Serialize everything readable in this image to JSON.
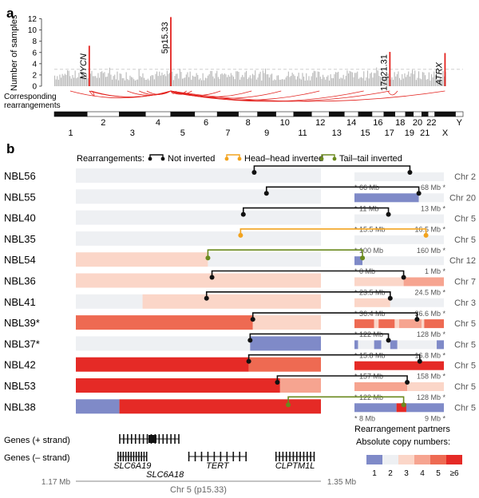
{
  "panel_labels": {
    "a": "a",
    "b": "b"
  },
  "chart_data": [
    {
      "type": "bar",
      "panel": "a",
      "ylabel": "Number of samples",
      "yticks": [
        0,
        2,
        4,
        6,
        8,
        10,
        12
      ],
      "ylim": [
        0,
        12.5
      ],
      "rearrangement_label": [
        "Corresponding",
        "rearrangements"
      ],
      "chromosomes": [
        "1",
        "2",
        "3",
        "4",
        "5",
        "6",
        "7",
        "8",
        "9",
        "10",
        "11",
        "12",
        "13",
        "14",
        "15",
        "16",
        "17",
        "18",
        "19",
        "20",
        "21",
        "22",
        "X",
        "Y"
      ],
      "chrom_sizes_mb": [
        248,
        242,
        198,
        190,
        181,
        171,
        159,
        145,
        138,
        134,
        135,
        133,
        114,
        107,
        102,
        90,
        83,
        80,
        59,
        64,
        47,
        51,
        156,
        57
      ],
      "peaks": [
        {
          "label": "MYCN",
          "chrom": "2",
          "pos_mb": 16,
          "value": 7.2
        },
        {
          "label": "5p15.33",
          "chrom": "5",
          "pos_mb": 1.3,
          "value": 12.3
        },
        {
          "label": "17q21.31",
          "chrom": "17",
          "pos_mb": 45,
          "value": 6.1
        },
        {
          "label": "ATRX",
          "chrom": "X",
          "pos_mb": 77,
          "value": 5.9
        }
      ],
      "background_level": 2,
      "threshold_line": 3
    },
    {
      "type": "heatmap",
      "panel": "b",
      "legend_title": "Rearrangements:",
      "legend": [
        {
          "name": "Not inverted",
          "color": "#111111"
        },
        {
          "name": "Head–head inverted",
          "color": "#f2a31e"
        },
        {
          "name": "Tail–tail inverted",
          "color": "#6b8a1e"
        }
      ],
      "region_xlim_mb": [
        1.17,
        1.35
      ],
      "region_axis_labels": [
        "1.17 Mb",
        "1.35 Mb"
      ],
      "region_label": "Chr 5 (p15.33)",
      "partners_label": "Rearrangement partners",
      "copy_number_legend_title": "Absolute copy numbers:",
      "copy_number_scale": [
        {
          "label": "1",
          "color": "#7f8ac8"
        },
        {
          "label": "2",
          "color": "#eef0f3"
        },
        {
          "label": "3",
          "color": "#fbd6c8"
        },
        {
          "label": "4",
          "color": "#f6a490"
        },
        {
          "label": "5",
          "color": "#ee6a52"
        },
        {
          "label": "≥6",
          "color": "#e52a26"
        }
      ],
      "genes_plus_label": "Genes (+ strand)",
      "genes_minus_label": "Genes (– strand)",
      "genes": [
        {
          "name": "SLC6A19",
          "strand": "-",
          "start_mb": 1.201,
          "end_mb": 1.222
        },
        {
          "name": "SLC6A18",
          "strand": "-",
          "start_mb": 1.225,
          "end_mb": 1.246
        },
        {
          "name": "TERT",
          "strand": "-",
          "start_mb": 1.253,
          "end_mb": 1.295
        },
        {
          "name": "CLPTM1L",
          "strand": "-",
          "start_mb": 1.317,
          "end_mb": 1.345
        }
      ],
      "samples": [
        {
          "name": "NBL56",
          "segments": [
            [
              1.17,
              1.35,
              2
            ]
          ],
          "bp_mb": 1.301,
          "type": "not_inverted",
          "partner": {
            "chrom": "Chr 2",
            "start": "66 Mb",
            "end": "68 Mb",
            "bp_frac": 0.62,
            "segments": [
              [
                0,
                1,
                2
              ]
            ]
          }
        },
        {
          "name": "NBL55",
          "segments": [
            [
              1.17,
              1.35,
              2
            ]
          ],
          "bp_mb": 1.31,
          "type": "not_inverted",
          "partner": {
            "chrom": "Chr 20",
            "start": "11 Mb",
            "end": "13 Mb",
            "bp_frac": 0.72,
            "segments": [
              [
                0,
                0.72,
                1
              ],
              [
                0.72,
                1,
                2
              ]
            ]
          }
        },
        {
          "name": "NBL40",
          "segments": [
            [
              1.17,
              1.35,
              2
            ]
          ],
          "bp_mb": 1.293,
          "type": "not_inverted",
          "partner": {
            "chrom": "Chr 5",
            "start": "15.5 Mb",
            "end": "16.5 Mb",
            "bp_frac": 0.38,
            "segments": [
              [
                0,
                1,
                2
              ]
            ]
          }
        },
        {
          "name": "NBL35",
          "segments": [
            [
              1.17,
              1.35,
              2
            ]
          ],
          "bp_mb": 1.291,
          "type": "head_head_inverted",
          "partner": {
            "chrom": "Chr 5",
            "start": "100 Mb",
            "end": "160 Mb",
            "bp_frac": 0.8,
            "segments": [
              [
                0,
                1,
                2
              ]
            ]
          }
        },
        {
          "name": "NBL54",
          "segments": [
            [
              1.17,
              1.267,
              3
            ],
            [
              1.267,
              1.35,
              2
            ]
          ],
          "bp_mb": 1.267,
          "type": "tail_tail_inverted",
          "partner": {
            "chrom": "Chr 12",
            "start": "0 Mb",
            "end": "1 Mb",
            "bp_frac": 0.09,
            "segments": [
              [
                0,
                0.09,
                1
              ],
              [
                0.09,
                1,
                2
              ]
            ]
          }
        },
        {
          "name": "NBL36",
          "segments": [
            [
              1.17,
              1.35,
              3
            ]
          ],
          "bp_mb": 1.27,
          "type": "not_inverted",
          "partner": {
            "chrom": "Chr 7",
            "start": "23.5 Mb",
            "end": "24.5 Mb",
            "bp_frac": 0.55,
            "segments": [
              [
                0,
                0.55,
                3
              ],
              [
                0.55,
                1,
                4
              ]
            ]
          }
        },
        {
          "name": "NBL41",
          "segments": [
            [
              1.17,
              1.219,
              2
            ],
            [
              1.219,
              1.35,
              3
            ]
          ],
          "bp_mb": 1.266,
          "type": "not_inverted",
          "partner": {
            "chrom": "Chr 3",
            "start": "36.4 Mb",
            "end": "36.6 Mb",
            "bp_frac": 0.4,
            "segments": [
              [
                0,
                0.4,
                3
              ],
              [
                0.4,
                1,
                2
              ]
            ]
          }
        },
        {
          "name": "NBL39*",
          "segments": [
            [
              1.17,
              1.3,
              5
            ],
            [
              1.3,
              1.35,
              3
            ]
          ],
          "bp_mb": 1.3,
          "type": "not_inverted",
          "partner": {
            "chrom": "Chr 5",
            "start": "122 Mb",
            "end": "128 Mb",
            "bp_frac": 0.7,
            "segments": [
              [
                0,
                0.22,
                5
              ],
              [
                0.22,
                0.27,
                3
              ],
              [
                0.27,
                0.45,
                5
              ],
              [
                0.45,
                0.5,
                3
              ],
              [
                0.5,
                0.75,
                4
              ],
              [
                0.75,
                0.78,
                3
              ],
              [
                0.78,
                1,
                5
              ]
            ]
          }
        },
        {
          "name": "NBL37*",
          "segments": [
            [
              1.17,
              1.298,
              2
            ],
            [
              1.298,
              1.35,
              1
            ]
          ],
          "bp_mb": 1.298,
          "type": "not_inverted",
          "partner": {
            "chrom": "Chr 5",
            "start": "15.8 Mb",
            "end": "16.8 Mb",
            "bp_frac": 0.38,
            "segments": [
              [
                0,
                0.04,
                1
              ],
              [
                0.04,
                0.22,
                2
              ],
              [
                0.22,
                0.3,
                1
              ],
              [
                0.3,
                0.4,
                2
              ],
              [
                0.4,
                0.48,
                1
              ],
              [
                0.48,
                0.92,
                2
              ],
              [
                0.92,
                1,
                1
              ]
            ]
          }
        },
        {
          "name": "NBL42",
          "segments": [
            [
              1.17,
              1.297,
              6
            ],
            [
              1.297,
              1.35,
              5
            ]
          ],
          "bp_mb": 1.297,
          "type": "not_inverted",
          "partner": {
            "chrom": "Chr 5",
            "start": "157 Mb",
            "end": "158 Mb",
            "bp_frac": 0.73,
            "segments": [
              [
                0,
                1,
                6
              ]
            ]
          }
        },
        {
          "name": "NBL53",
          "segments": [
            [
              1.17,
              1.32,
              6
            ],
            [
              1.32,
              1.35,
              4
            ]
          ],
          "bp_mb": 1.318,
          "type": "not_inverted",
          "partner": {
            "chrom": "Chr 5",
            "start": "122 Mb",
            "end": "128 Mb",
            "bp_frac": 0.59,
            "segments": [
              [
                0,
                0.59,
                4
              ],
              [
                0.59,
                1,
                3
              ]
            ]
          }
        },
        {
          "name": "NBL38",
          "segments": [
            [
              1.17,
              1.202,
              1
            ],
            [
              1.202,
              1.35,
              6
            ]
          ],
          "bp_mb": 1.326,
          "type": "tail_tail_inverted",
          "partner": {
            "chrom": "Chr 5",
            "start": "8 Mb",
            "end": "9 Mb",
            "bp_frac": 0.55,
            "segments": [
              [
                0,
                0.47,
                1
              ],
              [
                0.47,
                0.58,
                6
              ],
              [
                0.58,
                1,
                1
              ]
            ]
          }
        }
      ]
    }
  ]
}
